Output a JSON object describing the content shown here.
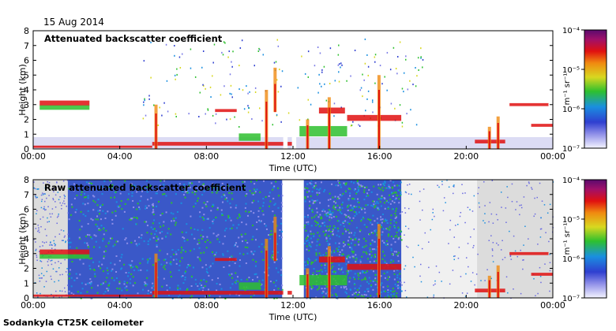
{
  "date": "15 Aug 2014",
  "footer": "Sodankyla CT25K ceilometer",
  "colorbar": {
    "unit_label": "m⁻¹ sr⁻¹",
    "ticks": [
      "10⁻⁴",
      "10⁻⁵",
      "10⁻⁶",
      "10⁻⁷"
    ],
    "tick_values": [
      -4,
      -5,
      -6,
      -7
    ]
  },
  "chart_data": [
    {
      "type": "heatmap",
      "title": "Attenuated backscatter coefficient",
      "xlabel": "Time (UTC)",
      "ylabel": "Height (km)",
      "x_ticks": [
        "00:00",
        "04:00",
        "08:00",
        "12:00",
        "16:00",
        "20:00",
        "00:00"
      ],
      "y_ticks": [
        "0",
        "1",
        "2",
        "3",
        "4",
        "5",
        "6",
        "7",
        "8"
      ],
      "xlim": [
        0,
        24
      ],
      "ylim": [
        0,
        8
      ],
      "colorscale": "log",
      "clim": [
        1e-07,
        0.0001
      ]
    },
    {
      "type": "heatmap",
      "title": "Raw attenuated backscatter coefficient",
      "xlabel": "Time (UTC)",
      "ylabel": "Height (km)",
      "x_ticks": [
        "00:00",
        "04:00",
        "08:00",
        "12:00",
        "16:00",
        "20:00",
        "00:00"
      ],
      "y_ticks": [
        "0",
        "1",
        "2",
        "3",
        "4",
        "5",
        "6",
        "7",
        "8"
      ],
      "xlim": [
        0,
        24
      ],
      "ylim": [
        0,
        8
      ],
      "colorscale": "log",
      "clim": [
        1e-07,
        0.0001
      ]
    }
  ]
}
